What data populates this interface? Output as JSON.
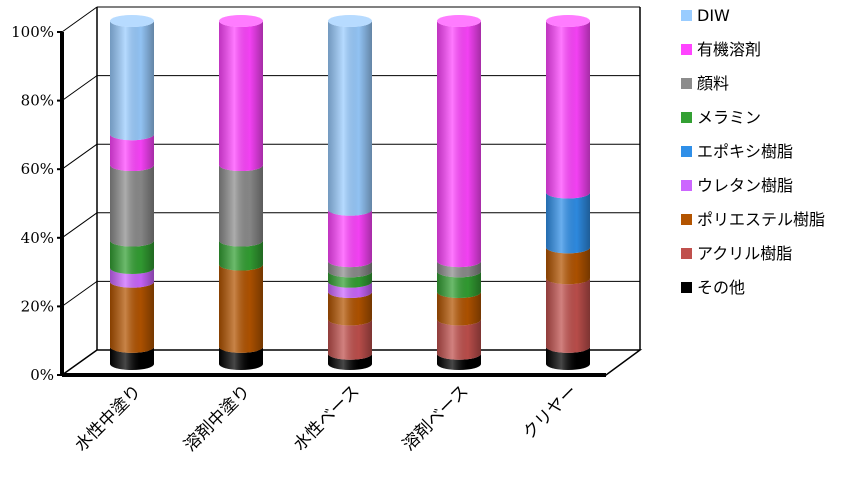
{
  "chart_data": {
    "type": "bar",
    "stacked": true,
    "style": "3d-cylinder",
    "categories": [
      "水性中塗り",
      "溶剤中塗り",
      "水性ベース",
      "溶剤ベース",
      "クリヤー"
    ],
    "ylim": [
      0,
      100
    ],
    "yticks": [
      "0%",
      "20%",
      "40%",
      "60%",
      "80%",
      "100%"
    ],
    "ytick_values": [
      0,
      20,
      40,
      60,
      80,
      100
    ],
    "legend_position": "right",
    "series": [
      {
        "name": "その他",
        "color": "#000000",
        "values": [
          5,
          5,
          3,
          3,
          5
        ]
      },
      {
        "name": "アクリル樹脂",
        "color": "#c0504d",
        "values": [
          0,
          0,
          10,
          10,
          20
        ]
      },
      {
        "name": "ポリエステル樹脂",
        "color": "#b35400",
        "values": [
          19,
          24,
          8,
          8,
          9
        ]
      },
      {
        "name": "ウレタン樹脂",
        "color": "#cc66ff",
        "values": [
          4,
          0,
          3,
          0,
          0
        ]
      },
      {
        "name": "エポキシ樹脂",
        "color": "#2f8fe8",
        "values": [
          0,
          0,
          0,
          0,
          16
        ]
      },
      {
        "name": "メラミン",
        "color": "#33a033",
        "values": [
          8,
          7,
          3,
          6,
          0
        ]
      },
      {
        "name": "顔料",
        "color": "#8c8c8c",
        "values": [
          22,
          22,
          3,
          3,
          0
        ]
      },
      {
        "name": "有機溶剤",
        "color": "#ff44ff",
        "values": [
          9,
          42,
          15,
          70,
          50
        ]
      },
      {
        "name": "DIW",
        "color": "#99ccff",
        "values": [
          33,
          0,
          55,
          0,
          0
        ]
      }
    ],
    "legend_order": [
      "DIW",
      "有機溶剤",
      "顔料",
      "メラミン",
      "エポキシ樹脂",
      "ウレタン樹脂",
      "ポリエステル樹脂",
      "アクリル樹脂",
      "その他"
    ]
  }
}
